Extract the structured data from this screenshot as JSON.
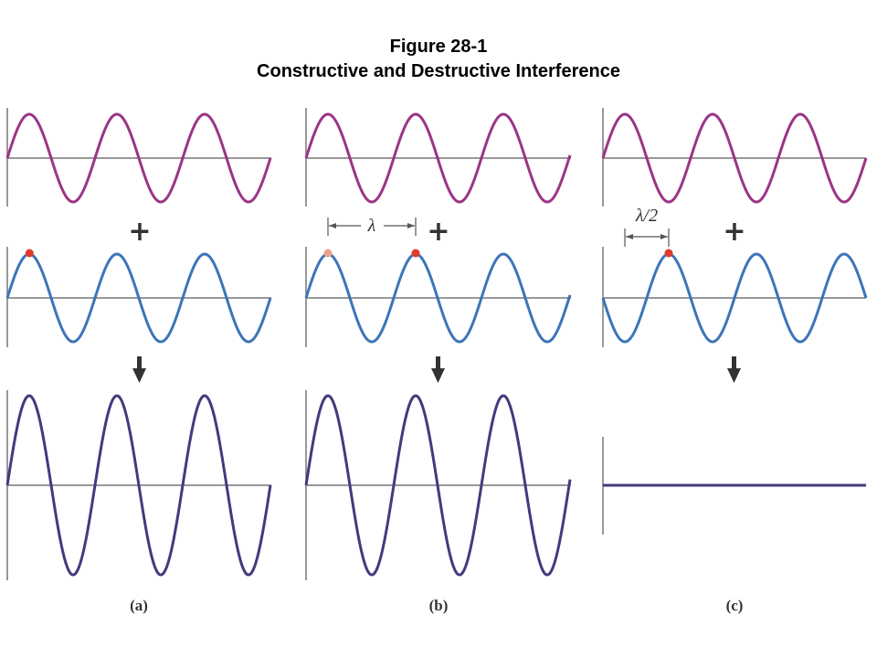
{
  "title": {
    "line1": "Figure 28-1",
    "line2": "Constructive and Destructive Interference"
  },
  "colors": {
    "wave1": "#9b3587",
    "wave2": "#3d75b8",
    "result": "#443a7c",
    "axis": "#777777",
    "marker": "#e03a2a",
    "marker_light": "#efa08c",
    "symbol": "#333333"
  },
  "symbols": {
    "plus": "+",
    "arrow": "down-arrow-icon"
  },
  "panels": [
    {
      "id": "a",
      "label": "(a)",
      "phase_shift": "",
      "result": "double amplitude"
    },
    {
      "id": "b",
      "label": "(b)",
      "phase_shift": "λ",
      "result": "double amplitude"
    },
    {
      "id": "c",
      "label": "(c)",
      "phase_shift": "λ/2",
      "result": "zero amplitude"
    }
  ]
}
